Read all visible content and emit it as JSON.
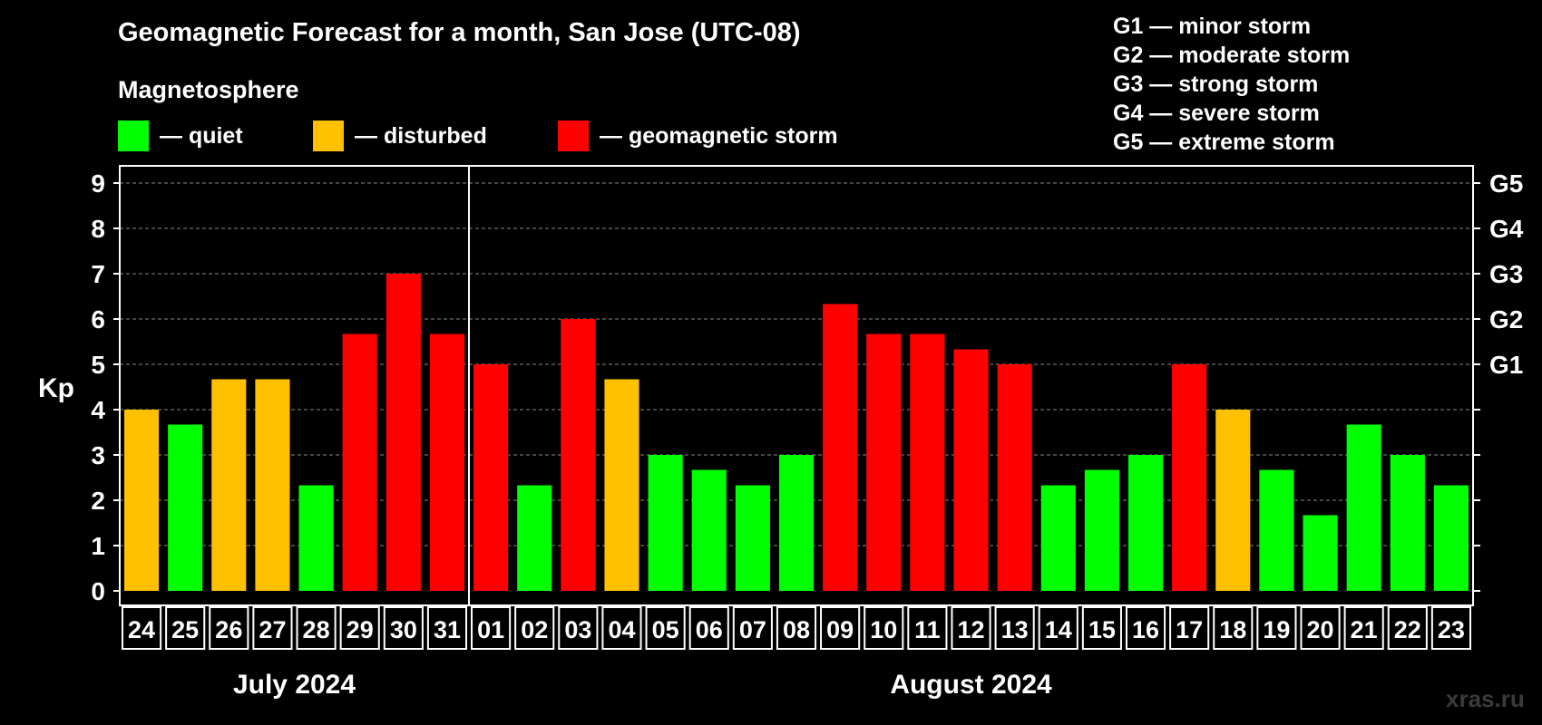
{
  "chart_data": {
    "type": "bar",
    "title": "Geomagnetic Forecast for a month, San Jose (UTC-08)",
    "ylabel": "Kp",
    "ylim": [
      0,
      9
    ],
    "yticks": [
      "0",
      "1",
      "2",
      "3",
      "4",
      "5",
      "6",
      "7",
      "8",
      "9"
    ],
    "right_ticks": [
      {
        "value": 5,
        "label": "G1"
      },
      {
        "value": 6,
        "label": "G2"
      },
      {
        "value": 7,
        "label": "G3"
      },
      {
        "value": 8,
        "label": "G4"
      },
      {
        "value": 9,
        "label": "G5"
      }
    ],
    "categories": [
      "24",
      "25",
      "26",
      "27",
      "28",
      "29",
      "30",
      "31",
      "01",
      "02",
      "03",
      "04",
      "05",
      "06",
      "07",
      "08",
      "09",
      "10",
      "11",
      "12",
      "13",
      "14",
      "15",
      "16",
      "17",
      "18",
      "19",
      "20",
      "21",
      "22",
      "23"
    ],
    "values": [
      4,
      3.67,
      4.67,
      4.67,
      2.33,
      5.67,
      7,
      5.67,
      5,
      2.33,
      6,
      4.67,
      3,
      2.67,
      2.33,
      3,
      6.33,
      5.67,
      5.67,
      5.33,
      5,
      2.33,
      2.67,
      3,
      5,
      4,
      2.67,
      1.67,
      3.67,
      3,
      2.33
    ],
    "levels": [
      "disturbed",
      "quiet",
      "disturbed",
      "disturbed",
      "quiet",
      "storm",
      "storm",
      "storm",
      "storm",
      "quiet",
      "storm",
      "disturbed",
      "quiet",
      "quiet",
      "quiet",
      "quiet",
      "storm",
      "storm",
      "storm",
      "storm",
      "storm",
      "quiet",
      "quiet",
      "quiet",
      "storm",
      "disturbed",
      "quiet",
      "quiet",
      "quiet",
      "quiet",
      "quiet"
    ],
    "months": [
      {
        "label": "July 2024",
        "start": 0,
        "end": 7
      },
      {
        "label": "August 2024",
        "start": 8,
        "end": 30
      }
    ],
    "month_divider_after": 7,
    "grid": true
  },
  "colors": {
    "quiet": "#00ff00",
    "disturbed": "#ffc000",
    "storm": "#ff0000",
    "grid": "#888888",
    "axis": "#ffffff"
  },
  "magnetosphere": {
    "heading": "Magnetosphere",
    "items": [
      {
        "key": "quiet",
        "label": "— quiet"
      },
      {
        "key": "disturbed",
        "label": "— disturbed"
      },
      {
        "key": "storm",
        "label": "— geomagnetic storm"
      }
    ]
  },
  "storm_scale": [
    "G1 — minor storm",
    "G2 — moderate storm",
    "G3 — strong storm",
    "G4 — severe storm",
    "G5 — extreme storm"
  ],
  "watermark": "xras.ru"
}
